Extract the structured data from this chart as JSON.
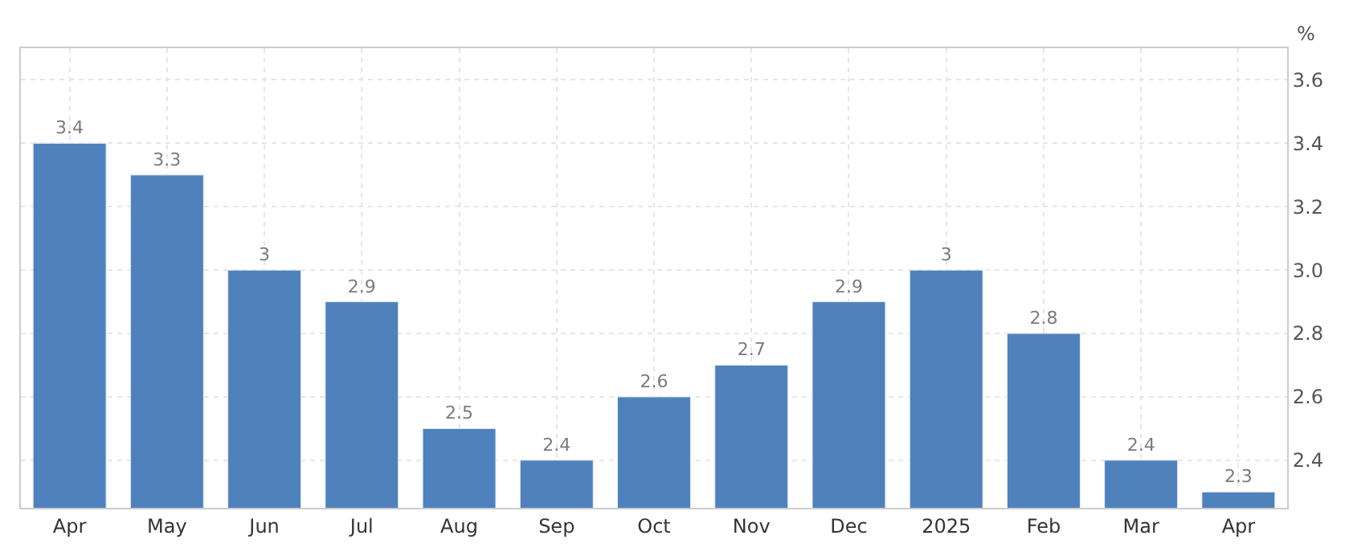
{
  "chart_data": {
    "type": "bar",
    "ylabel": "%",
    "categories": [
      "Apr",
      "May",
      "Jun",
      "Jul",
      "Aug",
      "Sep",
      "Oct",
      "Nov",
      "Dec",
      "2025",
      "Feb",
      "Mar",
      "Apr"
    ],
    "values": [
      3.4,
      3.3,
      3,
      2.9,
      2.5,
      2.4,
      2.6,
      2.7,
      2.9,
      3,
      2.8,
      2.4,
      2.3
    ],
    "color": "#4f81bd",
    "data_labels": true,
    "ylim": [
      2.25,
      3.7
    ],
    "yticks": [
      2.4,
      2.6,
      2.8,
      {
        "value": 3.0,
        "label": "3.0"
      },
      3.2,
      3.4,
      3.6
    ],
    "grid": true,
    "legend": false
  }
}
